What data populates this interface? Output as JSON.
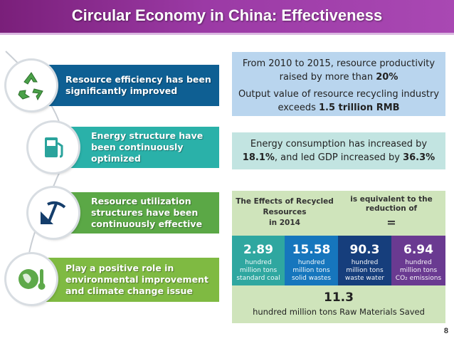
{
  "title": "Circular Economy in China: Effectiveness",
  "items": [
    {
      "label_lines": [
        "Resource efficiency has been",
        "significantly improved"
      ],
      "color": "#0e5f93",
      "icon": "recycle-icon"
    },
    {
      "label_lines": [
        "Energy structure have",
        "been continuously",
        "optimized"
      ],
      "color": "#2ab1a9",
      "icon": "fuel-pump-icon"
    },
    {
      "label_lines": [
        "Resource utilization",
        "structures have been",
        "continuously effective"
      ],
      "color": "#5ba846",
      "icon": "mining-pickaxe-icon"
    },
    {
      "label_lines": [
        "Play a positive role in",
        "environmental improvement",
        "and climate change issue"
      ],
      "color": "#7fba42",
      "icon": "globe-thermometer-icon"
    }
  ],
  "box1": {
    "line1": "From 2010 to 2015, resource productivity",
    "line2_pre": "raised by more than ",
    "line2_bold": "20%",
    "line3": "Output value of resource recycling industry",
    "line4_pre": "exceeds ",
    "line4_bold": "1.5 trillion RMB"
  },
  "box2": {
    "line1": "Energy consumption has increased by",
    "pct1": "18.1%",
    "mid": ", and led GDP increased by ",
    "pct2": "36.3%"
  },
  "effects": {
    "left_title_lines": [
      "The Effects of Recycled",
      "Resources",
      "in 2014"
    ],
    "right_title_lines": [
      "is equivalent to the",
      "reduction of"
    ],
    "equals": "=",
    "cells": [
      {
        "value": "2.89",
        "lines": [
          "hundred",
          "million tons",
          "standard coal"
        ],
        "color": "#2fa7a0"
      },
      {
        "value": "15.58",
        "lines": [
          "hundred",
          "million tons",
          "solid wastes"
        ],
        "color": "#1676bd"
      },
      {
        "value": "90.3",
        "lines": [
          "hundred",
          "million tons",
          "waste water"
        ],
        "color": "#163e7c"
      },
      {
        "value": "6.94",
        "lines": [
          "hundred",
          "million tons",
          "CO₂ emissions"
        ],
        "color": "#6a3a91"
      }
    ],
    "total_value": "11.3",
    "total_label": "hundred million tons Raw Materials Saved"
  },
  "page_number": "8"
}
